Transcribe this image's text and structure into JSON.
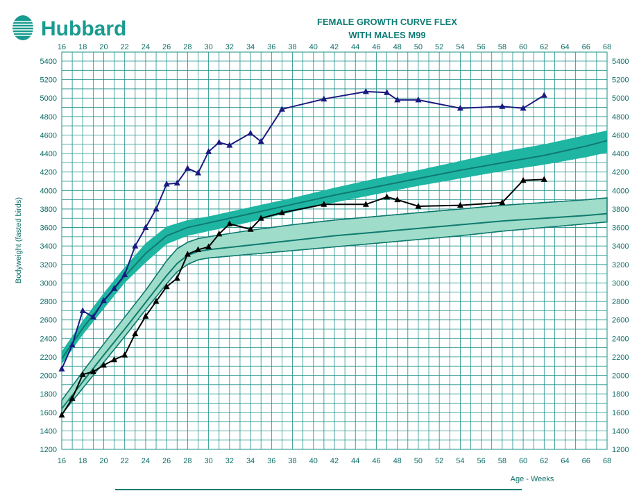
{
  "brand": {
    "name": "Hubbard"
  },
  "colors": {
    "brand": "#1a9b8f",
    "title": "#0e7d75",
    "grid": "#1a8f86",
    "band": "#1fb5a3",
    "band_light": "#9fdcc9",
    "band_line": "#0f7a70",
    "male": "#1a1a80",
    "female": "#000000",
    "tick": "#0d6f68"
  },
  "chart_data": {
    "type": "line",
    "title_line1": "FEMALE GROWTH CURVE FLEX",
    "title_line2": "WITH MALES M99",
    "xlabel": "Age - Weeks",
    "ylabel": "Bodyweight (fasted birds)",
    "xlim": [
      16,
      68
    ],
    "ylim": [
      1200,
      5500
    ],
    "x_ticks": [
      16,
      18,
      20,
      22,
      24,
      26,
      28,
      30,
      32,
      34,
      36,
      38,
      40,
      42,
      44,
      46,
      48,
      50,
      52,
      54,
      56,
      58,
      60,
      62,
      64,
      66,
      68
    ],
    "y_ticks": [
      1200,
      1400,
      1600,
      1800,
      2000,
      2200,
      2400,
      2600,
      2800,
      3000,
      3200,
      3400,
      3600,
      3800,
      4000,
      4200,
      4400,
      4600,
      4800,
      5000,
      5200,
      5400
    ],
    "grid": true,
    "series": [
      {
        "kind": "actual-male",
        "marker": "triangle",
        "x": [
          16,
          17,
          18,
          19,
          20,
          21,
          22,
          23,
          24,
          25,
          26,
          27,
          28,
          29,
          30,
          31,
          32,
          34,
          35,
          37,
          41,
          45,
          47,
          48,
          50,
          54,
          58,
          60,
          62
        ],
        "y": [
          2070,
          2330,
          2700,
          2630,
          2810,
          2940,
          3090,
          3400,
          3600,
          3800,
          4070,
          4080,
          4240,
          4190,
          4420,
          4520,
          4490,
          4620,
          4530,
          4880,
          4990,
          5070,
          5060,
          4980,
          4980,
          4890,
          4910,
          4890,
          5030
        ]
      },
      {
        "kind": "actual-female",
        "marker": "triangle",
        "x": [
          16,
          17,
          18,
          19,
          20,
          21,
          22,
          23,
          24,
          25,
          26,
          27,
          28,
          29,
          30,
          31,
          32,
          34,
          35,
          37,
          41,
          45,
          47,
          48,
          50,
          54,
          58,
          60,
          62
        ],
        "y": [
          1570,
          1750,
          2010,
          2040,
          2110,
          2170,
          2220,
          2450,
          2640,
          2800,
          2960,
          3050,
          3310,
          3360,
          3390,
          3530,
          3640,
          3580,
          3700,
          3760,
          3850,
          3850,
          3930,
          3900,
          3830,
          3840,
          3870,
          4110,
          4120
        ]
      }
    ],
    "standard_bands": [
      {
        "kind": "male-standard",
        "x": [
          16,
          18,
          20,
          22,
          24,
          26,
          28,
          30,
          34,
          38,
          42,
          46,
          50,
          54,
          58,
          62,
          66,
          68
        ],
        "mid": [
          2180,
          2510,
          2800,
          3070,
          3320,
          3510,
          3600,
          3650,
          3750,
          3850,
          3950,
          4040,
          4130,
          4220,
          4300,
          4380,
          4480,
          4540
        ],
        "upper": [
          2260,
          2590,
          2890,
          3170,
          3430,
          3610,
          3680,
          3720,
          3820,
          3920,
          4030,
          4130,
          4220,
          4320,
          4420,
          4500,
          4600,
          4650
        ],
        "lower": [
          2120,
          2440,
          2720,
          3000,
          3220,
          3420,
          3510,
          3560,
          3660,
          3770,
          3870,
          3960,
          4050,
          4130,
          4210,
          4280,
          4360,
          4410
        ]
      },
      {
        "kind": "female-standard",
        "x": [
          16,
          18,
          20,
          22,
          24,
          26,
          27,
          28,
          29,
          30,
          34,
          38,
          42,
          46,
          50,
          54,
          58,
          62,
          66,
          68
        ],
        "mid": [
          1640,
          1930,
          2220,
          2500,
          2790,
          3080,
          3210,
          3300,
          3340,
          3360,
          3410,
          3460,
          3510,
          3550,
          3590,
          3630,
          3670,
          3700,
          3730,
          3750
        ],
        "upper": [
          1730,
          2040,
          2340,
          2630,
          2920,
          3240,
          3370,
          3440,
          3480,
          3500,
          3570,
          3630,
          3680,
          3720,
          3760,
          3800,
          3840,
          3870,
          3900,
          3920
        ],
        "lower": [
          1580,
          1860,
          2140,
          2420,
          2710,
          2990,
          3120,
          3200,
          3250,
          3270,
          3310,
          3350,
          3390,
          3430,
          3470,
          3510,
          3560,
          3600,
          3640,
          3660
        ]
      }
    ]
  }
}
